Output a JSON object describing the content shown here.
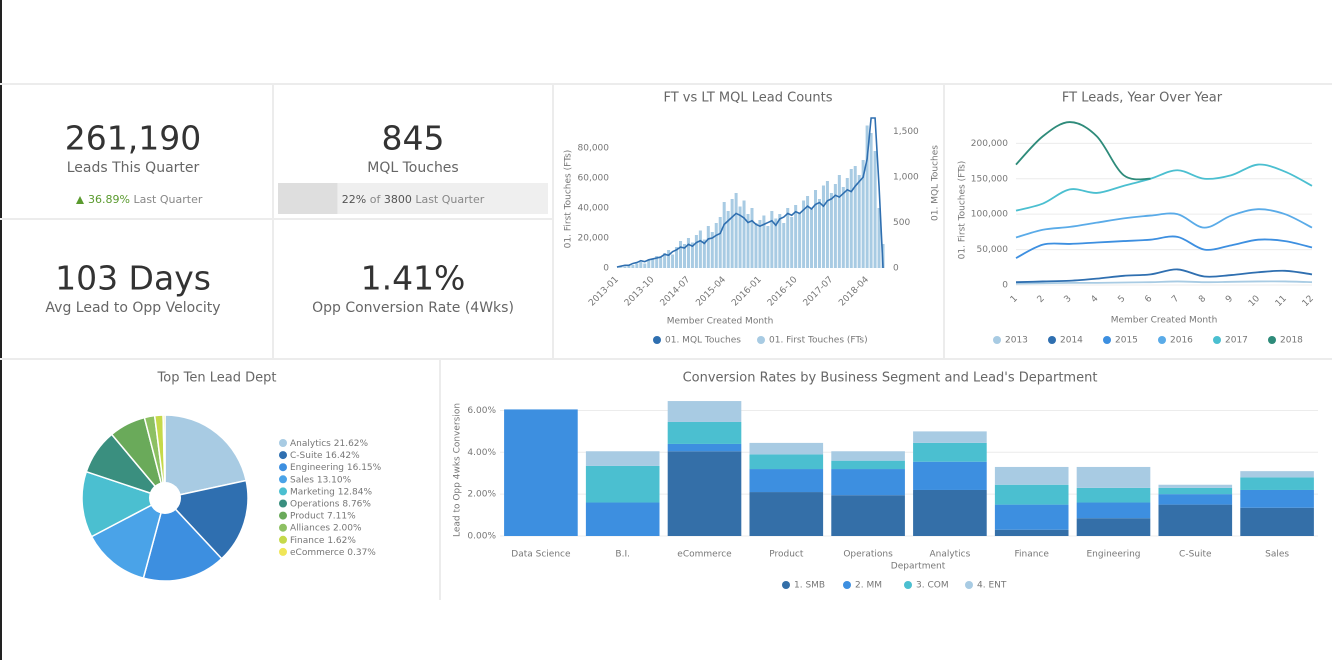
{
  "kpis": [
    {
      "value": "261,190",
      "label": "Leads This Quarter",
      "change": "36.89%",
      "note": "Last Quarter"
    },
    {
      "value": "845",
      "label": "MQL Touches",
      "progress": {
        "value": 22,
        "label": "22%"
      },
      "of": "of",
      "target": "3800",
      "note": "Last Quarter"
    },
    {
      "value": "103 Days",
      "label": "Avg Lead to Opp Velocity"
    },
    {
      "value": "1.41%",
      "label": "Opp Conversion Rate (4Wks)"
    }
  ],
  "chart_data": [
    {
      "type": "combo",
      "title": "FT vs LT MQL Lead Counts",
      "xlabel": "Member Created Month",
      "ylabel": "01. First Touches (FTs)",
      "y2label": "01. MQL Touches",
      "categories": [
        "2013-01",
        null,
        null,
        null,
        null,
        null,
        null,
        null,
        null,
        "2013-10",
        null,
        null,
        null,
        null,
        null,
        null,
        null,
        null,
        "2014-07",
        null,
        null,
        null,
        null,
        null,
        null,
        null,
        null,
        "2015-04",
        null,
        null,
        null,
        null,
        null,
        null,
        null,
        null,
        "2016-01",
        null,
        null,
        null,
        null,
        null,
        null,
        null,
        null,
        "2016-10",
        null,
        null,
        null,
        null,
        null,
        null,
        null,
        null,
        "2017-07",
        null,
        null,
        null,
        null,
        null,
        null,
        null,
        null,
        "2018-04",
        null,
        null,
        null,
        null
      ],
      "series": [
        {
          "name": "01. MQL Touches",
          "type": "line",
          "axis": "y2",
          "color": "#2f6fb0",
          "values": [
            10,
            20,
            30,
            30,
            50,
            60,
            80,
            70,
            90,
            100,
            110,
            120,
            150,
            140,
            180,
            200,
            230,
            220,
            260,
            240,
            280,
            300,
            270,
            320,
            330,
            360,
            380,
            480,
            520,
            560,
            600,
            580,
            550,
            500,
            520,
            480,
            460,
            480,
            500,
            520,
            470,
            540,
            560,
            600,
            580,
            620,
            600,
            640,
            680,
            650,
            700,
            720,
            680,
            740,
            760,
            800,
            780,
            820,
            860,
            840,
            900,
            950,
            1000,
            1200,
            1650,
            1650,
            900,
            0
          ]
        },
        {
          "name": "01. First Touches (FTs)",
          "type": "bar",
          "color": "#a8cbe3",
          "values": [
            0,
            500,
            1000,
            1500,
            2000,
            3000,
            4000,
            3000,
            5000,
            6000,
            8000,
            7000,
            10000,
            12000,
            9000,
            14000,
            18000,
            16000,
            20000,
            17000,
            22000,
            25000,
            19000,
            28000,
            24000,
            30000,
            34000,
            44000,
            38000,
            46000,
            50000,
            41000,
            45000,
            36000,
            40000,
            30000,
            32000,
            35000,
            28000,
            38000,
            33000,
            36000,
            30000,
            40000,
            34000,
            42000,
            37000,
            45000,
            48000,
            40000,
            52000,
            46000,
            55000,
            58000,
            50000,
            56000,
            62000,
            54000,
            60000,
            66000,
            68000,
            62000,
            72000,
            95000,
            90000,
            78000,
            40000,
            16000
          ]
        }
      ],
      "ylim": [
        0,
        100000
      ],
      "yticks": [
        0,
        {
          "value": 20000,
          "label": "20,000"
        },
        {
          "value": 40000,
          "label": "40,000"
        },
        {
          "value": 60000,
          "label": "60,000"
        },
        {
          "value": 80000,
          "label": "80,000"
        }
      ],
      "y2lim": [
        0,
        1650
      ],
      "y2ticks": [
        0,
        500,
        {
          "value": 1000,
          "label": "1,000"
        },
        {
          "value": 1500,
          "label": "1,500"
        }
      ],
      "grid": false
    },
    {
      "type": "line",
      "title": "FT Leads, Year Over Year",
      "xlabel": "Member Created Month",
      "ylabel": "01. First Touches (FTs)",
      "x": [
        1,
        2,
        3,
        4,
        5,
        6,
        7,
        8,
        9,
        10,
        11,
        12
      ],
      "xlim": [
        1,
        12
      ],
      "xticks": [
        1,
        2,
        3,
        4,
        5,
        6,
        7,
        8,
        9,
        10,
        11,
        12
      ],
      "series": [
        {
          "name": "2013",
          "color": "#a8cbe3",
          "values": [
            2000,
            2500,
            3000,
            3000,
            3500,
            4000,
            5000,
            4000,
            4500,
            5000,
            5000,
            4000
          ]
        },
        {
          "name": "2014",
          "color": "#2f6fb0",
          "values": [
            4000,
            5000,
            6000,
            9000,
            13000,
            15000,
            22000,
            12000,
            14000,
            18000,
            20000,
            15000
          ]
        },
        {
          "name": "2015",
          "color": "#3d8fe0",
          "values": [
            38000,
            57000,
            58000,
            60000,
            62000,
            64000,
            68000,
            50000,
            56000,
            64000,
            62000,
            53000
          ]
        },
        {
          "name": "2016",
          "color": "#5aabe8",
          "values": [
            67000,
            78000,
            82000,
            88000,
            94000,
            98000,
            100000,
            81000,
            98000,
            107000,
            100000,
            81000
          ]
        },
        {
          "name": "2017",
          "color": "#4bbfd0",
          "values": [
            105000,
            115000,
            135000,
            130000,
            140000,
            150000,
            162000,
            150000,
            155000,
            170000,
            160000,
            140000
          ]
        },
        {
          "name": "2018",
          "color": "#2e8b7a",
          "values": [
            170000,
            210000,
            230000,
            210000,
            155000,
            150000,
            null,
            null,
            null,
            null,
            null,
            null
          ]
        }
      ],
      "ylim": [
        0,
        240000
      ],
      "yticks": [
        0,
        {
          "value": 50000,
          "label": "50,000"
        },
        {
          "value": 100000,
          "label": "100,000"
        },
        {
          "value": 150000,
          "label": "150,000"
        },
        {
          "value": 200000,
          "label": "200,000"
        }
      ],
      "grid": true
    },
    {
      "type": "pie",
      "title": "Top Ten Lead Dept",
      "categories": [
        "Analytics",
        "C-Suite",
        "Engineering",
        "Sales",
        "Marketing",
        "Operations",
        "Product",
        "Alliances",
        "Finance",
        "eCommerce"
      ],
      "values": [
        21.62,
        16.42,
        16.15,
        13.1,
        12.84,
        8.76,
        7.11,
        2.0,
        1.62,
        0.37
      ],
      "value_labels": [
        "21.62%",
        "16.42%",
        "16.15%",
        "13.10%",
        "12.84%",
        "8.76%",
        "7.11%",
        "2.00%",
        "1.62%",
        "0.37%"
      ],
      "colors": [
        "#a8cbe3",
        "#2f6fb0",
        "#3d8fe0",
        "#4aa3e8",
        "#4bbfd0",
        "#3a8f7f",
        "#6aaa5a",
        "#8dc063",
        "#c5d94a",
        "#f0e658"
      ]
    },
    {
      "type": "bar",
      "stacked": true,
      "title": "Conversion Rates by Business Segment and Lead's Department",
      "xlabel": "Department",
      "ylabel": "Lead to Opp 4wks Conversion",
      "categories": [
        "Data Science",
        "B.I.",
        "eCommerce",
        "Product",
        "Operations",
        "Analytics",
        "Finance",
        "Engineering",
        "C-Suite",
        "Sales"
      ],
      "series": [
        {
          "name": "1. SMB",
          "color": "#346fa8",
          "values": [
            0,
            0,
            4.05,
            2.1,
            1.95,
            2.2,
            0.3,
            0.85,
            1.5,
            1.35
          ]
        },
        {
          "name": "2. MM",
          "color": "#3d8fe0",
          "values": [
            6.05,
            1.6,
            0.35,
            1.1,
            1.25,
            1.35,
            1.2,
            0.75,
            0.5,
            0.85
          ]
        },
        {
          "name": "3. COM",
          "color": "#4bbfd0",
          "values": [
            0,
            1.75,
            1.05,
            0.7,
            0.4,
            0.9,
            0.95,
            0.7,
            0.3,
            0.6
          ]
        },
        {
          "name": "4. ENT",
          "color": "#a8cbe3",
          "values": [
            0,
            0.7,
            1.0,
            0.55,
            0.45,
            0.55,
            0.85,
            1.0,
            0.15,
            0.3
          ]
        }
      ],
      "ylim": [
        0,
        6.5
      ],
      "yticks": [
        {
          "value": 0,
          "label": "0.00%"
        },
        {
          "value": 2,
          "label": "2.00%"
        },
        {
          "value": 4,
          "label": "4.00%"
        },
        {
          "value": 6,
          "label": "6.00%"
        }
      ],
      "grid": true
    }
  ]
}
